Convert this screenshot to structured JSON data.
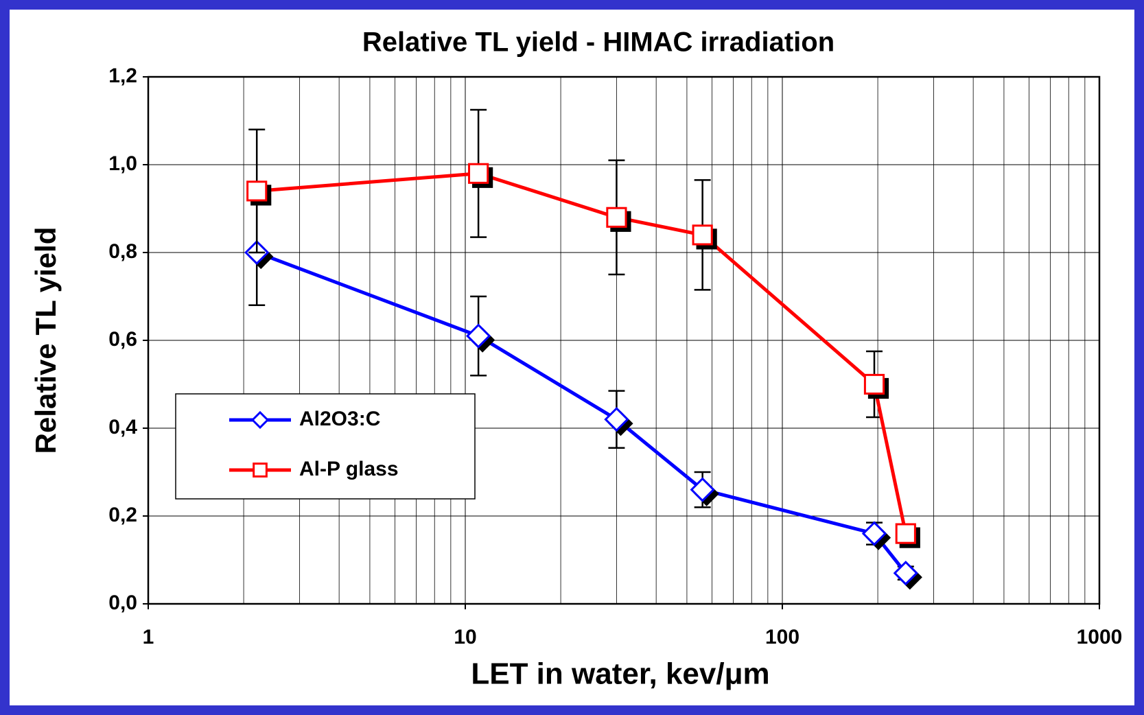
{
  "chart_data": {
    "type": "line",
    "title": "Relative TL yield - HIMAC irradiation",
    "xlabel": "LET in water, kev/μm",
    "ylabel": "Relative TL yield",
    "xscale": "log",
    "xlim": [
      1,
      1000
    ],
    "xticks": [
      1,
      10,
      100,
      1000
    ],
    "ylim": [
      0,
      1.2
    ],
    "yticks": [
      {
        "value": 0,
        "label": "0,0"
      },
      {
        "value": 0.2,
        "label": "0,2"
      },
      {
        "value": 0.4,
        "label": "0,4"
      },
      {
        "value": 0.6,
        "label": "0,6"
      },
      {
        "value": 0.8,
        "label": "0,8"
      },
      {
        "value": 1.0,
        "label": "1,0"
      },
      {
        "value": 1.2,
        "label": "1,2"
      }
    ],
    "grid": true,
    "legend": "left",
    "series": [
      {
        "name": "Al2O3:C",
        "color": "#0000ff",
        "marker": "diamond",
        "x": [
          2.2,
          11,
          30,
          56,
          195,
          245
        ],
        "values": [
          0.8,
          0.61,
          0.42,
          0.26,
          0.16,
          0.07
        ],
        "errors": [
          0.12,
          0.09,
          0.065,
          0.04,
          0.025,
          0.015
        ]
      },
      {
        "name": "Al-P glass",
        "color": "#ff0000",
        "marker": "square",
        "x": [
          2.2,
          11,
          30,
          56,
          195,
          245
        ],
        "values": [
          0.94,
          0.98,
          0.88,
          0.84,
          0.5,
          0.16
        ],
        "errors": [
          0.14,
          0.145,
          0.13,
          0.125,
          0.075,
          null
        ]
      }
    ]
  }
}
